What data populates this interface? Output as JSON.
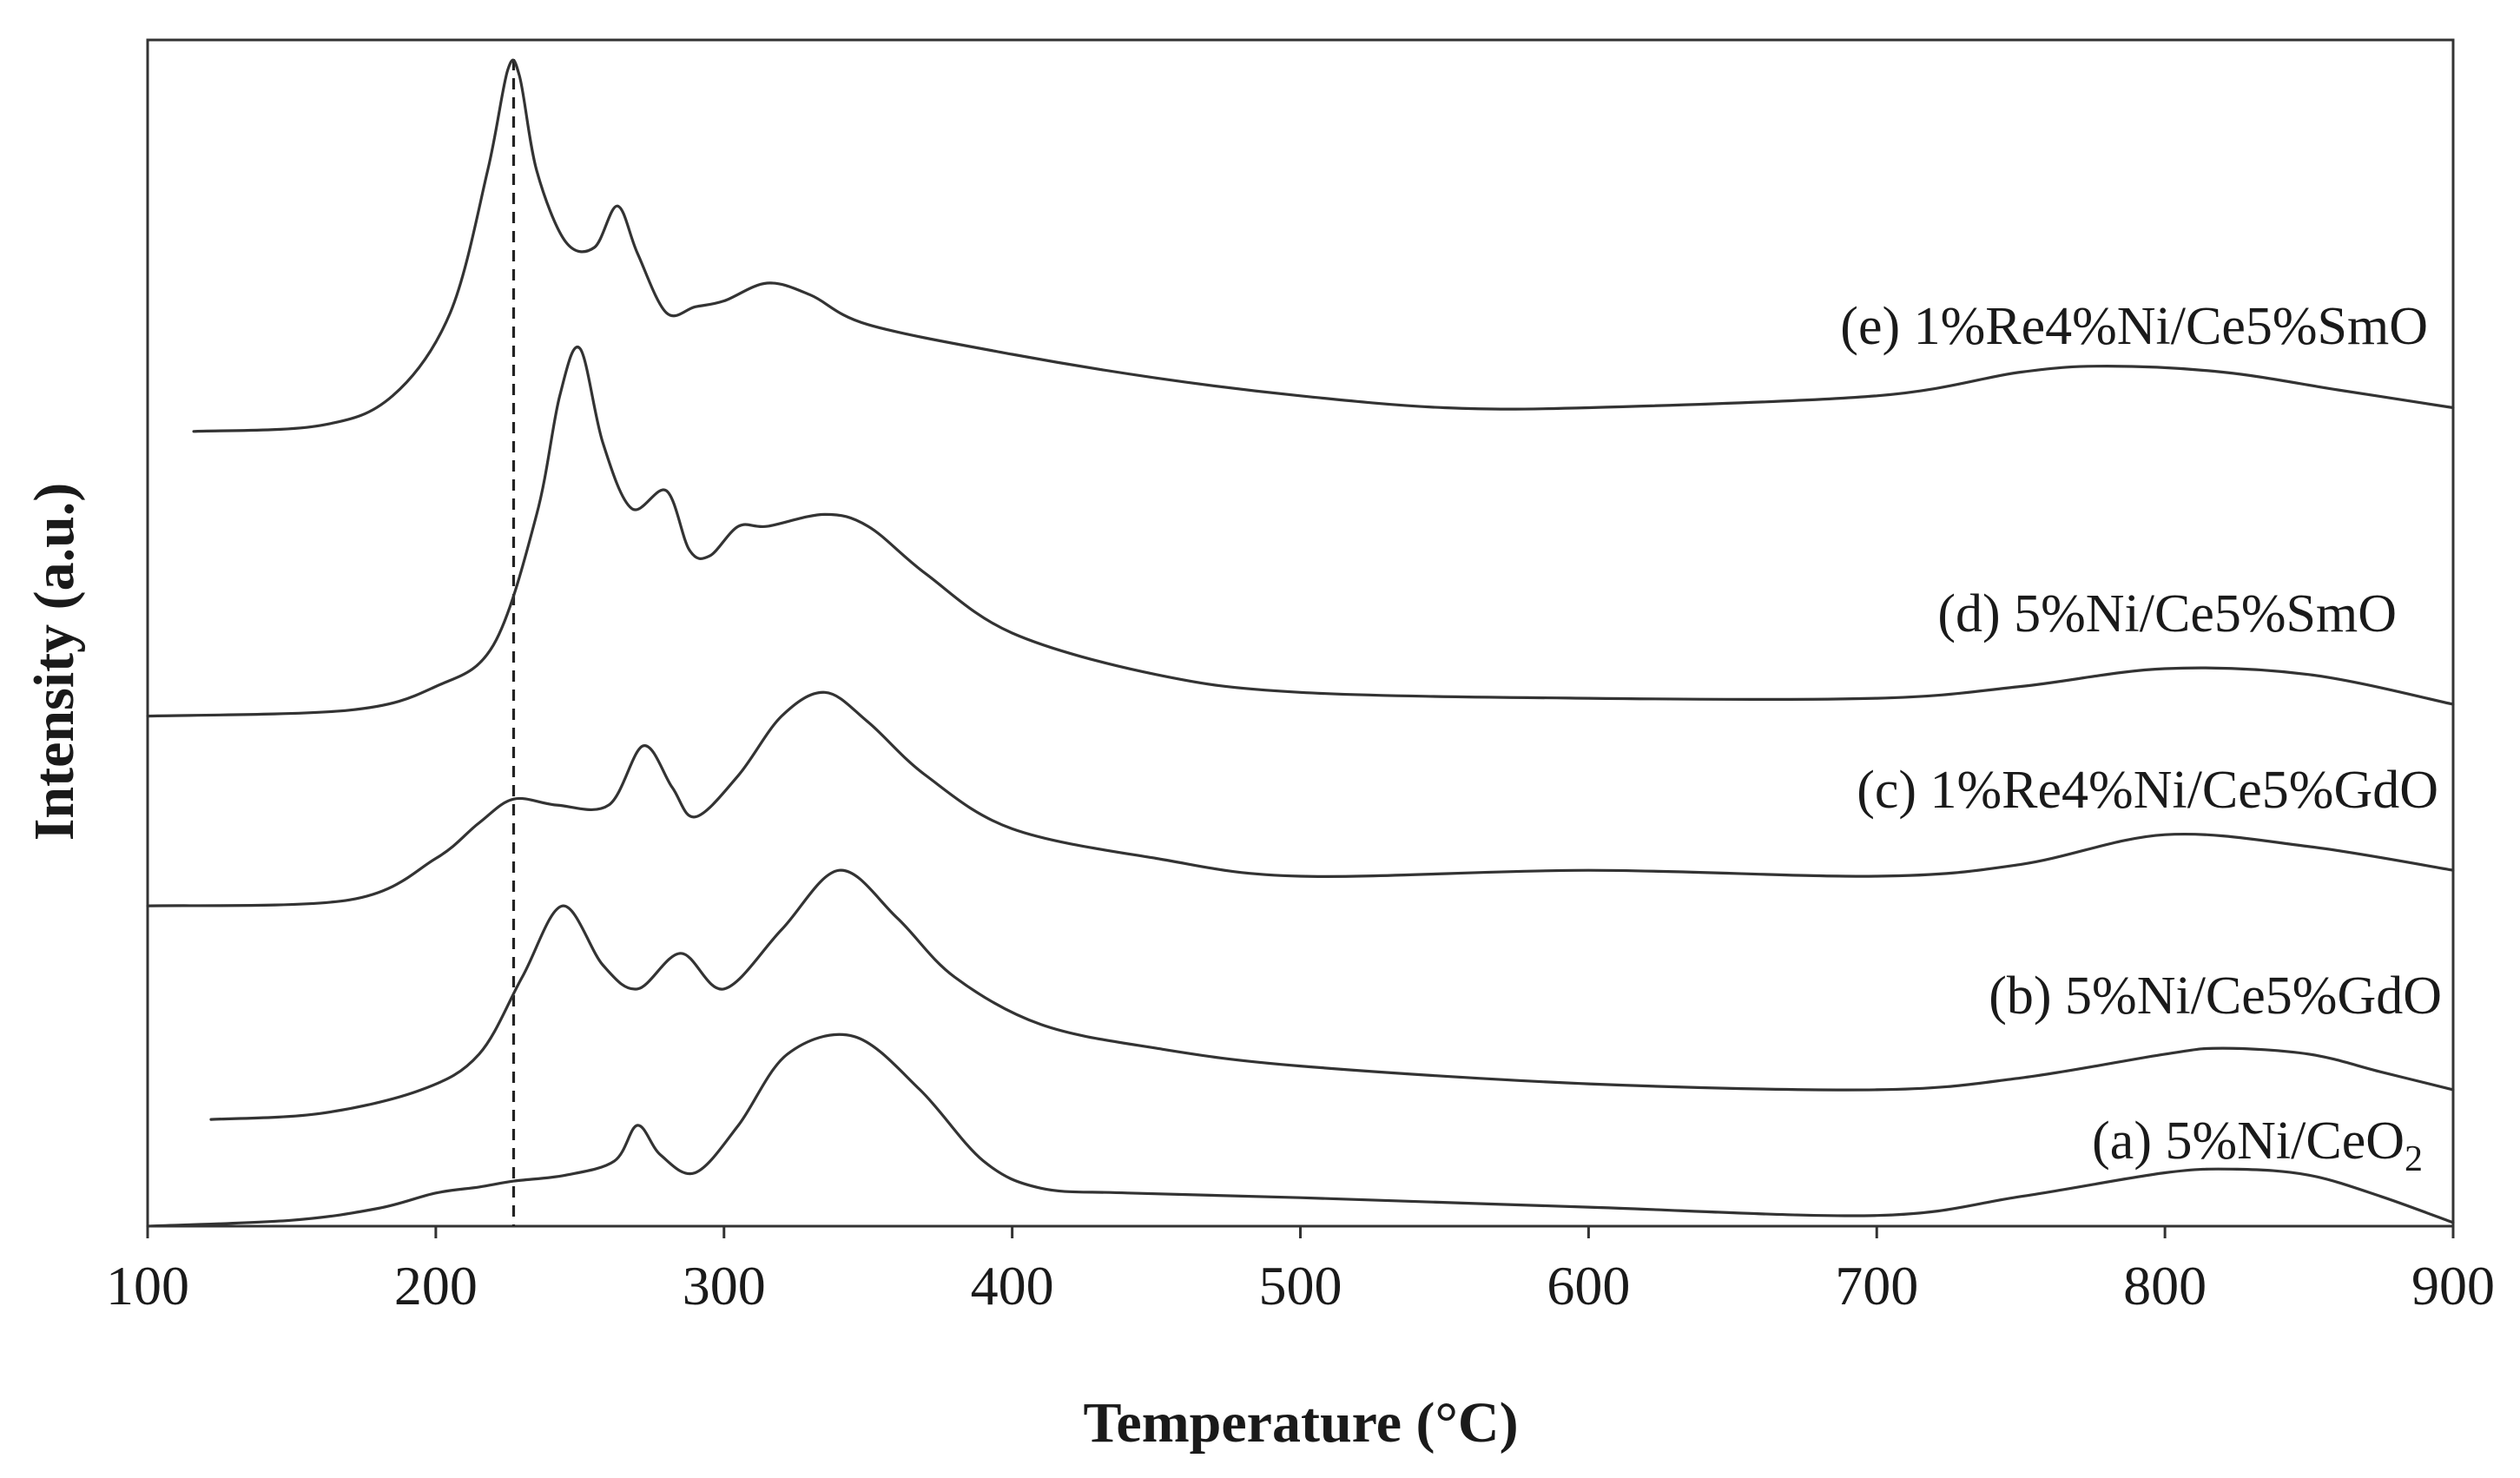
{
  "chart_data": {
    "type": "line",
    "xlabel": "Temperature (°C)",
    "ylabel": "Intensity (a.u.)",
    "xlim": [
      100,
      900
    ],
    "ylim": [
      0,
      100
    ],
    "xticks": [
      100,
      200,
      300,
      400,
      500,
      600,
      700,
      800,
      900
    ],
    "yticks": [],
    "grid": false,
    "reference_line": {
      "x": 227,
      "style": "dashed"
    },
    "series": [
      {
        "name": "(a) 5%Ni/CeO",
        "subscript": "2",
        "x": [
          100,
          150,
          180,
          200,
          215,
          227,
          245,
          262,
          270,
          278,
          290,
          305,
          322,
          345,
          368,
          390,
          410,
          440,
          500,
          600,
          700,
          750,
          800,
          825,
          850,
          875,
          900
        ],
        "y": [
          0,
          0.5,
          1.5,
          2.8,
          3.3,
          3.8,
          4.3,
          5.5,
          8.5,
          6,
          4.5,
          8.5,
          14.5,
          16,
          11.5,
          5.5,
          3.2,
          2.8,
          2.4,
          1.6,
          0.9,
          2.5,
          4.5,
          4.8,
          4.3,
          2.5,
          0.3
        ]
      },
      {
        "name": "(b) 5%Ni/Ce5%GdO",
        "x": [
          122,
          160,
          195,
          215,
          230,
          244,
          258,
          270,
          285,
          300,
          320,
          340,
          360,
          380,
          410,
          450,
          500,
          600,
          700,
          750,
          800,
          820,
          850,
          875,
          900
        ],
        "y": [
          9,
          9.5,
          11.5,
          14.5,
          21,
          27,
          22,
          20,
          23,
          20,
          25,
          30,
          26,
          21,
          17,
          15,
          13.5,
          12,
          11.5,
          12.5,
          14.5,
          15,
          14.5,
          13,
          11.5
        ]
      },
      {
        "name": "(c) 1%Re4%Ni/Ce5%GdO",
        "x": [
          100,
          170,
          200,
          215,
          227,
          242,
          260,
          272,
          282,
          290,
          305,
          320,
          335,
          350,
          370,
          400,
          450,
          500,
          600,
          700,
          750,
          800,
          850,
          900
        ],
        "y": [
          27,
          27.5,
          31,
          34,
          36,
          35.5,
          35.5,
          40.5,
          37,
          34.5,
          38,
          43,
          45,
          42.5,
          38,
          33.5,
          31,
          29.5,
          30,
          29.5,
          30.5,
          33,
          32,
          30
        ]
      },
      {
        "name": "(d) 5%Ni/Ce5%SmO",
        "x": [
          100,
          170,
          200,
          220,
          235,
          243,
          250,
          258,
          268,
          280,
          288,
          295,
          305,
          315,
          335,
          350,
          370,
          400,
          450,
          500,
          600,
          700,
          750,
          800,
          850,
          900
        ],
        "y": [
          43,
          43.5,
          45.5,
          49,
          60,
          70,
          74,
          66,
          60.5,
          62,
          57,
          56.5,
          59,
          59,
          60,
          59,
          55,
          50,
          46.5,
          45,
          44.5,
          44.5,
          45.5,
          47,
          46.5,
          44
        ]
      },
      {
        "name": "(e) 1%Re4%Ni/Ce5%SmO",
        "x": [
          116,
          160,
          185,
          205,
          218,
          225,
          229,
          235,
          245,
          255,
          263,
          270,
          280,
          290,
          300,
          315,
          330,
          350,
          400,
          450,
          500,
          550,
          600,
          700,
          750,
          780,
          820,
          860,
          900
        ],
        "y": [
          67,
          67.5,
          70,
          77,
          89,
          97.5,
          97,
          89,
          83,
          82.5,
          86,
          82,
          77,
          77.5,
          78,
          79.5,
          78.5,
          76,
          73.5,
          71.5,
          70,
          69,
          69,
          70,
          72,
          72.5,
          72,
          70.5,
          69
        ]
      }
    ]
  }
}
